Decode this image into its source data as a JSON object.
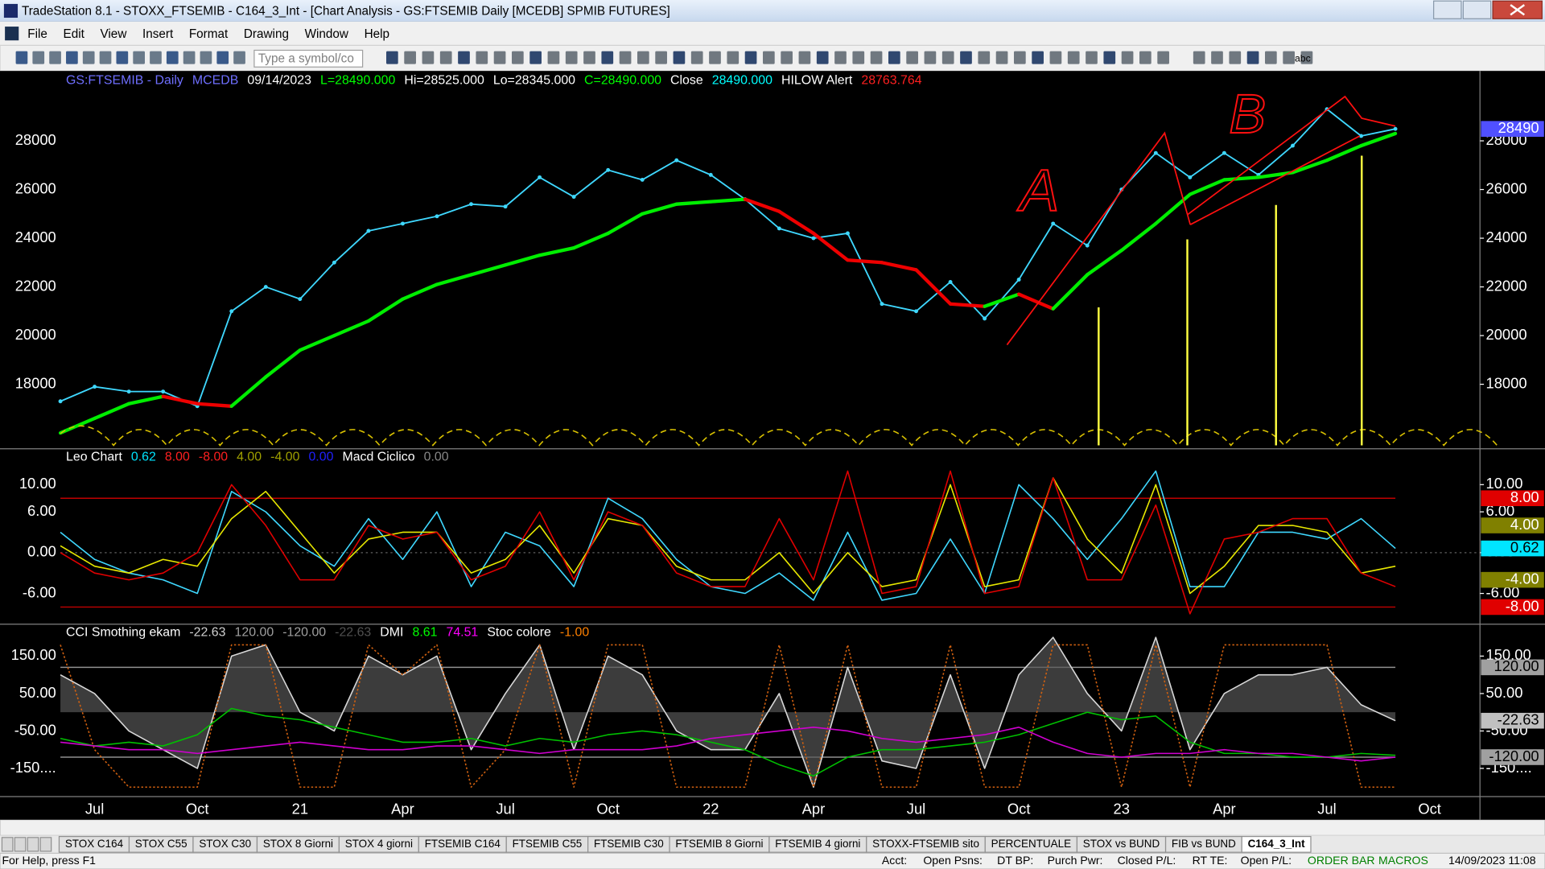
{
  "window": {
    "title": "TradeStation 8.1 - STOXX_FTSEMIB - C164_3_Int - [Chart Analysis - GS:FTSEMIB  Daily  [MCEDB] SPMIB FUTURES]"
  },
  "menu": [
    "File",
    "Edit",
    "View",
    "Insert",
    "Format",
    "Drawing",
    "Window",
    "Help"
  ],
  "toolbar": {
    "symbol_placeholder": "Type a symbol/co",
    "icon_text": "abc"
  },
  "chart_data": [
    {
      "type": "line",
      "header": [
        "GS:FTSEMIB - Daily",
        "MCEDB",
        "09/14/2023",
        "L=28490.000",
        "Hi=28525.000",
        "Lo=28345.000",
        "C=28490.000",
        "Close",
        "28490.000",
        "HILOW Alert",
        "28763.764"
      ],
      "header_colors": [
        "#6f6fff",
        "#6f6fff",
        "#ffffff",
        "#00ff00",
        "#ffffff",
        "#ffffff",
        "#00ff00",
        "#ffffff",
        "#00ffff",
        "#ffffff",
        "#ff2020"
      ],
      "categories": [
        null,
        "Jul",
        null,
        null,
        "Oct",
        null,
        null,
        "21",
        null,
        null,
        "Apr",
        null,
        null,
        "Jul",
        null,
        null,
        "Oct",
        null,
        null,
        "22",
        null,
        null,
        "Apr",
        null,
        null,
        "Jul",
        null,
        null,
        "Oct",
        null,
        null,
        "23",
        null,
        null,
        "Apr",
        null,
        null,
        "Jul",
        null,
        null,
        "Oct"
      ],
      "series": [
        {
          "name": "GS:FTSEMIB",
          "color": "#3fd8ff",
          "markers": true,
          "values": [
            17300,
            17900,
            17700,
            17700,
            17100,
            21000,
            22000,
            21500,
            23000,
            24300,
            24600,
            24900,
            25400,
            25300,
            26500,
            25700,
            26800,
            26400,
            27200,
            26600,
            25600,
            24400,
            24000,
            24200,
            21300,
            21000,
            22200,
            20700,
            22300,
            24600,
            23700,
            26000,
            27500,
            26500,
            27500,
            26600,
            27800,
            29300,
            28200,
            28490,
            null
          ]
        },
        {
          "name": "Average",
          "color": "#00ee00",
          "down_color": "#ee0000",
          "values": [
            16000,
            16600,
            17200,
            17500,
            17200,
            17100,
            18300,
            19400,
            20000,
            20600,
            21500,
            22100,
            22500,
            22900,
            23300,
            23600,
            24200,
            25000,
            25400,
            25500,
            25600,
            25100,
            24200,
            23100,
            23000,
            22700,
            21300,
            21200,
            21700,
            21100,
            22500,
            23500,
            24600,
            25800,
            26400,
            26500,
            26700,
            27200,
            27800,
            28300,
            null
          ]
        }
      ],
      "ylim": [
        15370,
        30790
      ],
      "yticks": [
        18000,
        20000,
        22000,
        24000,
        26000,
        28000
      ],
      "right_tags": [
        {
          "value": 28490,
          "label": "28490",
          "color": "#5050ff"
        }
      ],
      "annotations": [
        "A",
        "B"
      ]
    },
    {
      "type": "line",
      "header": [
        "Leo Chart",
        "0.62",
        "8.00",
        "-8.00",
        "4.00",
        "-4.00",
        "0.00",
        "Macd Ciclico",
        "0.00"
      ],
      "header_colors": [
        "#ffffff",
        "#00e5ff",
        "#ff2020",
        "#ff2020",
        "#a0a000",
        "#a0a000",
        "#2020ff",
        "#ffffff",
        "#888888"
      ],
      "series": [
        {
          "name": "Leo",
          "color": "#3fd8ff",
          "values": [
            3,
            -1,
            -3,
            -4,
            -6,
            9,
            6,
            1,
            -2,
            5,
            -1,
            6,
            -5,
            3,
            1,
            -5,
            8,
            5,
            -1,
            -5,
            -6,
            -3,
            -7,
            3,
            -7,
            -6,
            2,
            -6,
            10,
            5,
            -1,
            5,
            12,
            -5,
            -5,
            3,
            3,
            2,
            5,
            0.62,
            null
          ]
        },
        {
          "name": "Signal",
          "color": "#e8e800",
          "values": [
            1,
            -2,
            -3,
            -1,
            -2,
            5,
            9,
            3,
            -3,
            2,
            3,
            3,
            -3,
            -1,
            4,
            -3,
            5,
            4,
            -2,
            -4,
            -4,
            0,
            -6,
            0,
            -5,
            -4,
            10,
            -5,
            -4,
            11,
            2,
            -3,
            10,
            -6,
            -2,
            4,
            4,
            3,
            -3,
            -2,
            null
          ]
        },
        {
          "name": "Cycle",
          "color": "#e00000",
          "values": [
            0,
            -3,
            -4,
            -3,
            0,
            10,
            4,
            -4,
            -4,
            4,
            2,
            3,
            -4,
            -2,
            6,
            -4,
            6,
            4,
            -3,
            -5,
            -5,
            5,
            -4,
            12,
            -6,
            -5,
            12,
            -6,
            -5,
            11,
            -4,
            -4,
            7,
            -9,
            2,
            3,
            5,
            5,
            -3,
            -5,
            null
          ]
        }
      ],
      "ylim": [
        -10.3,
        15.2
      ],
      "yticks": [
        {
          "value": 10,
          "label": "10.00"
        },
        {
          "value": 6,
          "label": "6.00"
        },
        {
          "value": 0,
          "label": "0.00"
        },
        {
          "value": -6,
          "label": "-6.00"
        }
      ],
      "levels": [
        8,
        -8
      ],
      "level_color": "#c00000",
      "right_tags": [
        {
          "value": 8,
          "label": "8.00",
          "color": "#e00000"
        },
        {
          "value": 4,
          "label": "4.00",
          "color": "#808000"
        },
        {
          "value": 0.62,
          "label": "0.62",
          "color": "#00e5ff"
        },
        {
          "value": -4,
          "label": "-4.00",
          "color": "#808000"
        },
        {
          "value": -8,
          "label": "-8.00",
          "color": "#e00000"
        }
      ]
    },
    {
      "type": "line",
      "header": [
        "CCI Smothing ekam",
        "-22.63",
        "120.00",
        "-120.00",
        "-22.63",
        "DMI",
        "8.61",
        "74.51",
        "Stoc colore",
        "-1.00"
      ],
      "header_colors": [
        "#ffffff",
        "#d0d0d0",
        "#a0a0a0",
        "#a0a0a0",
        "#505050",
        "#ffffff",
        "#00ff00",
        "#ff00ff",
        "#ffffff",
        "#ff8000"
      ],
      "series": [
        {
          "name": "CCI",
          "color": "#d8d8d8",
          "fill": "#555555",
          "values": [
            100,
            50,
            -50,
            -100,
            -150,
            150,
            180,
            0,
            -50,
            150,
            100,
            150,
            -100,
            50,
            180,
            -100,
            150,
            100,
            -50,
            -100,
            -100,
            50,
            -200,
            120,
            -130,
            -150,
            100,
            -150,
            100,
            200,
            50,
            -50,
            200,
            -100,
            50,
            100,
            100,
            120,
            20,
            -22.63,
            null
          ]
        },
        {
          "name": "Stoc",
          "color": "#d06010",
          "dash": true,
          "values": [
            180,
            -100,
            -200,
            -200,
            -200,
            180,
            180,
            -200,
            -200,
            180,
            100,
            180,
            -200,
            -100,
            180,
            -200,
            180,
            180,
            -200,
            -200,
            -200,
            180,
            -200,
            180,
            -200,
            -200,
            180,
            -200,
            -200,
            180,
            180,
            -200,
            180,
            -200,
            180,
            180,
            180,
            180,
            -200,
            -200,
            null
          ]
        },
        {
          "name": "DMI+",
          "color": "#00c000",
          "values": [
            -70,
            -90,
            -80,
            -90,
            -60,
            10,
            -10,
            -20,
            -40,
            -60,
            -80,
            -80,
            -70,
            -90,
            -70,
            -80,
            -60,
            -50,
            -60,
            -80,
            -100,
            -140,
            -170,
            -120,
            -100,
            -100,
            -90,
            -80,
            -60,
            -30,
            0,
            -20,
            -10,
            -80,
            -110,
            -110,
            -120,
            -120,
            -110,
            -115,
            null
          ]
        },
        {
          "name": "DMI-",
          "color": "#d000d0",
          "values": [
            -80,
            -90,
            -100,
            -100,
            -110,
            -100,
            -90,
            -80,
            -90,
            -100,
            -100,
            -90,
            -90,
            -100,
            -110,
            -100,
            -100,
            -100,
            -90,
            -70,
            -60,
            -50,
            -40,
            -50,
            -70,
            -80,
            -70,
            -60,
            -40,
            -80,
            -110,
            -120,
            -110,
            -110,
            -100,
            -110,
            -110,
            -120,
            -130,
            -120,
            null
          ]
        }
      ],
      "ylim": [
        -224,
        234
      ],
      "yticks": [
        {
          "value": 150,
          "label": "150.00"
        },
        {
          "value": 50,
          "label": "50.00"
        },
        {
          "value": -50,
          "label": "-50.00"
        },
        {
          "value": -150,
          "label": "-150...."
        }
      ],
      "levels": [
        120,
        -120
      ],
      "level_color": "#909090",
      "right_tags": [
        {
          "value": 120,
          "label": "120.00",
          "color": "#a0a0a0"
        },
        {
          "value": -22.63,
          "label": "-22.63",
          "color": "#c0c0c0"
        },
        {
          "value": -120,
          "label": "-120.00",
          "color": "#a0a0a0"
        }
      ]
    }
  ],
  "tabs": [
    "STOX C164",
    "STOX C55",
    "STOX  C30",
    "STOX  8 Giorni",
    "STOX 4 giorni",
    "FTSEMIB C164",
    "FTSEMIB C55",
    "FTSEMIB C30",
    "FTSEMIB  8 Giorni",
    "FTSEMIB  4 giorni",
    "STOXX-FTSEMIB sito",
    "PERCENTUALE",
    "STOX vs BUND",
    "FIB vs BUND",
    "C164_3_Int"
  ],
  "status_bar": [
    "For Help, press F1",
    "Acct:",
    "Open Psns:",
    "DT BP:",
    "Purch Pwr:",
    "Closed P/L:",
    "RT TE:",
    "Open P/L:",
    "ORDER BAR",
    "MACROS",
    "14/09/2023 11:08"
  ]
}
